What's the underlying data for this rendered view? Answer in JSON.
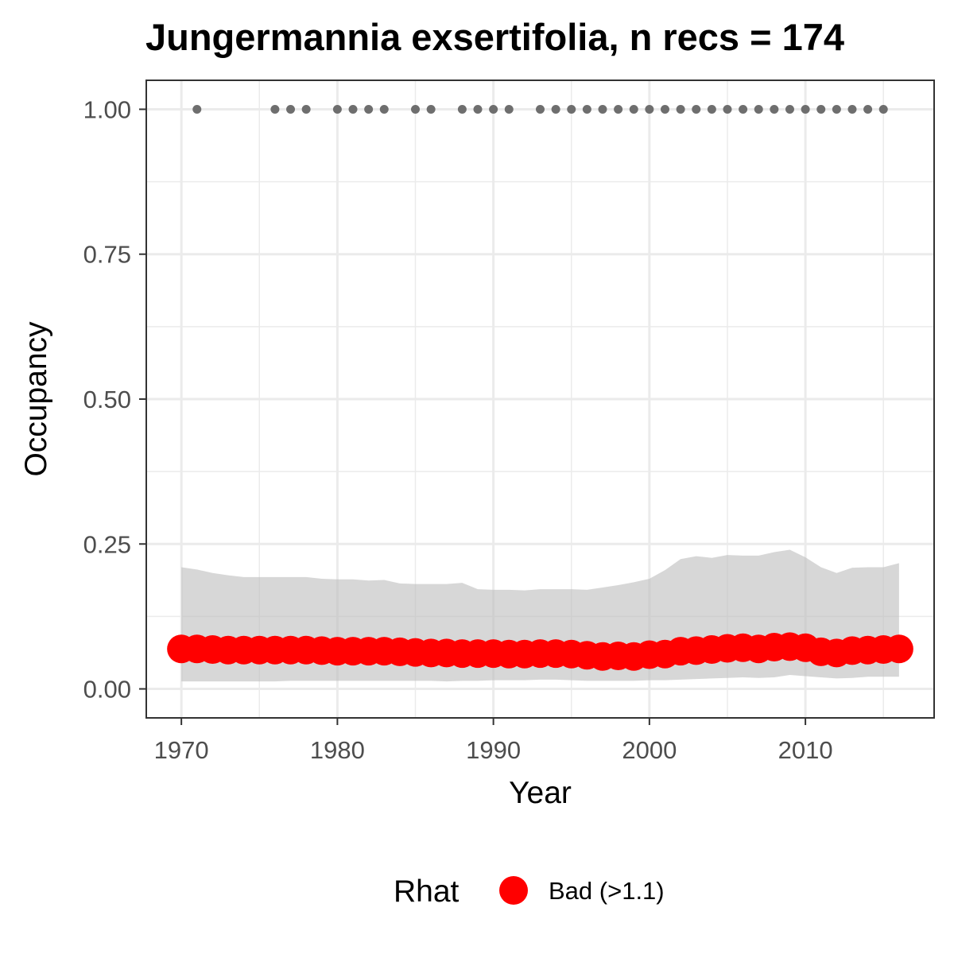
{
  "chart_data": {
    "type": "line",
    "title": "Jungermannia exsertifolia, n recs = 174",
    "xlabel": "Year",
    "ylabel": "Occupancy",
    "xlim": [
      1967.75,
      2018.25
    ],
    "ylim": [
      -0.05,
      1.05
    ],
    "x_ticks": [
      1970,
      1980,
      1990,
      2000,
      2010
    ],
    "x_tick_labels": [
      "1970",
      "1980",
      "1990",
      "2000",
      "2010"
    ],
    "y_ticks": [
      0,
      0.25,
      0.5,
      0.75,
      1
    ],
    "y_tick_labels": [
      "0.00",
      "0.25",
      "0.50",
      "0.75",
      "1.00"
    ],
    "grid": true,
    "colors": {
      "ribbon": "#bebebe",
      "estimate": "#ff0000",
      "record_points": "#6e6e6e",
      "panel_border": "#333333",
      "grid_major": "#ebebeb"
    },
    "years": [
      1970,
      1971,
      1972,
      1973,
      1974,
      1975,
      1976,
      1977,
      1978,
      1979,
      1980,
      1981,
      1982,
      1983,
      1984,
      1985,
      1986,
      1987,
      1988,
      1989,
      1990,
      1991,
      1992,
      1993,
      1994,
      1995,
      1996,
      1997,
      1998,
      1999,
      2000,
      2001,
      2002,
      2003,
      2004,
      2005,
      2006,
      2007,
      2008,
      2009,
      2010,
      2011,
      2012,
      2013,
      2014,
      2015,
      2016
    ],
    "series": [
      {
        "type": "ribbon",
        "upper": [
          0.21,
          0.206,
          0.2,
          0.196,
          0.193,
          0.193,
          0.193,
          0.193,
          0.193,
          0.19,
          0.189,
          0.189,
          0.187,
          0.188,
          0.182,
          0.181,
          0.181,
          0.181,
          0.183,
          0.172,
          0.171,
          0.171,
          0.17,
          0.172,
          0.172,
          0.172,
          0.171,
          0.175,
          0.179,
          0.184,
          0.19,
          0.205,
          0.224,
          0.229,
          0.226,
          0.231,
          0.23,
          0.23,
          0.236,
          0.24,
          0.227,
          0.21,
          0.2,
          0.209,
          0.21,
          0.21,
          0.217
        ],
        "lower": [
          0.013,
          0.013,
          0.013,
          0.013,
          0.013,
          0.013,
          0.013,
          0.014,
          0.014,
          0.014,
          0.014,
          0.014,
          0.014,
          0.014,
          0.014,
          0.014,
          0.014,
          0.013,
          0.014,
          0.014,
          0.015,
          0.015,
          0.015,
          0.016,
          0.016,
          0.015,
          0.014,
          0.014,
          0.014,
          0.014,
          0.015,
          0.015,
          0.016,
          0.017,
          0.018,
          0.019,
          0.02,
          0.019,
          0.02,
          0.024,
          0.022,
          0.02,
          0.018,
          0.019,
          0.021,
          0.021,
          0.021
        ]
      },
      {
        "type": "line-points",
        "legend_group": "Rhat",
        "values": [
          0.069,
          0.069,
          0.068,
          0.067,
          0.067,
          0.067,
          0.067,
          0.067,
          0.067,
          0.066,
          0.065,
          0.065,
          0.065,
          0.065,
          0.064,
          0.063,
          0.062,
          0.062,
          0.061,
          0.061,
          0.061,
          0.06,
          0.06,
          0.061,
          0.061,
          0.06,
          0.058,
          0.056,
          0.057,
          0.056,
          0.059,
          0.06,
          0.065,
          0.066,
          0.068,
          0.07,
          0.071,
          0.069,
          0.072,
          0.073,
          0.071,
          0.064,
          0.062,
          0.066,
          0.067,
          0.068,
          0.069
        ]
      },
      {
        "type": "scatter",
        "x": [
          1971,
          1976,
          1977,
          1978,
          1980,
          1981,
          1982,
          1983,
          1985,
          1986,
          1988,
          1989,
          1990,
          1991,
          1993,
          1994,
          1995,
          1996,
          1997,
          1998,
          1999,
          2000,
          2001,
          2002,
          2003,
          2004,
          2005,
          2006,
          2007,
          2008,
          2009,
          2010,
          2011,
          2012,
          2013,
          2014,
          2015
        ],
        "y": 1
      }
    ]
  },
  "legend": {
    "title": "Rhat",
    "items": [
      {
        "label": "Bad (>1.1)",
        "color": "#ff0000"
      }
    ]
  }
}
